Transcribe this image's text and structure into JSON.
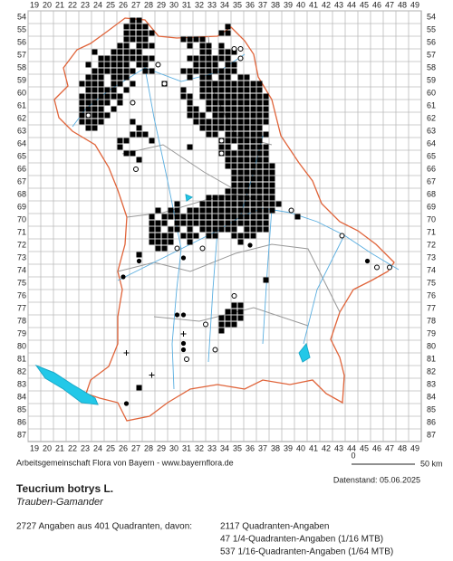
{
  "map": {
    "columns": [
      19,
      20,
      21,
      22,
      23,
      24,
      25,
      26,
      27,
      28,
      29,
      30,
      31,
      32,
      33,
      34,
      35,
      36,
      37,
      38,
      39,
      40,
      41,
      42,
      43,
      44,
      45,
      46,
      47,
      48,
      49
    ],
    "rows": [
      54,
      55,
      56,
      57,
      58,
      59,
      60,
      61,
      62,
      63,
      64,
      65,
      66,
      67,
      68,
      69,
      70,
      71,
      72,
      73,
      74,
      75,
      76,
      77,
      78,
      79,
      80,
      81,
      82,
      83,
      84,
      85,
      86,
      87
    ],
    "squares": [
      {
        "y": 54.25,
        "x": [
          26.75,
          27.25
        ]
      },
      {
        "y": 54.75,
        "x": [
          26.25,
          26.75,
          27.25,
          27.75,
          34.25
        ]
      },
      {
        "y": 55.25,
        "x": [
          26.25,
          26.75,
          27.25,
          27.75,
          28.25,
          33.75,
          34.25
        ]
      },
      {
        "y": 55.75,
        "x": [
          26.25,
          26.75,
          27.25,
          27.75,
          30.75,
          31.25,
          31.75,
          32.25
        ]
      },
      {
        "y": 56.25,
        "x": [
          25.75,
          26.25,
          27.25,
          27.75,
          28.25,
          31.25,
          32.25,
          32.75,
          33.75
        ]
      },
      {
        "y": 56.75,
        "x": [
          23.75,
          25.25,
          25.75,
          26.25,
          26.75,
          27.25,
          32.25,
          32.75,
          33.75,
          34.25,
          34.75
        ]
      },
      {
        "y": 57.25,
        "x": [
          24.25,
          24.75,
          25.25,
          25.75,
          26.25,
          26.75,
          27.25,
          27.75,
          28.25,
          31.25,
          31.75,
          32.25,
          32.75,
          33.25,
          33.75,
          34.25
        ]
      },
      {
        "y": 57.75,
        "x": [
          23.25,
          24.25,
          24.75,
          25.25,
          25.75,
          26.25,
          27.25,
          27.75,
          31.75,
          32.25,
          32.75,
          33.25,
          34.25,
          34.75
        ]
      },
      {
        "y": 58.25,
        "x": [
          23.75,
          24.25,
          24.75,
          25.25,
          25.75,
          26.25,
          26.75,
          27.75,
          28.25,
          30.75,
          31.25,
          31.75,
          32.25,
          32.75,
          33.25,
          33.75,
          34.25,
          34.75
        ]
      },
      {
        "y": 58.75,
        "x": [
          23.25,
          23.75,
          24.25,
          25.25,
          25.75,
          26.25,
          31.25,
          32.25,
          32.75,
          33.75,
          34.25,
          35.25,
          35.75
        ]
      },
      {
        "y": 59.25,
        "x": [
          22.75,
          23.25,
          23.75,
          24.25,
          25.25,
          25.75,
          26.75,
          29.25,
          32.25,
          32.75,
          33.25,
          33.75,
          34.25,
          34.75,
          35.25,
          35.75,
          36.25,
          36.75
        ]
      },
      {
        "y": 59.75,
        "x": [
          23.25,
          23.75,
          24.25,
          24.75,
          25.25,
          26.25,
          30.75,
          32.25,
          32.75,
          33.25,
          33.75,
          34.25,
          34.75,
          35.25,
          35.75,
          36.25,
          36.75
        ]
      },
      {
        "y": 60.25,
        "x": [
          22.75,
          23.25,
          23.75,
          24.25,
          24.75,
          25.25,
          25.75,
          30.75,
          31.25,
          32.25,
          32.75,
          33.25,
          33.75,
          34.25,
          34.75,
          35.25,
          35.75,
          36.25,
          36.75,
          37.25
        ]
      },
      {
        "y": 60.75,
        "x": [
          22.75,
          23.25,
          23.75,
          24.25,
          24.75,
          25.75,
          31.25,
          32.75,
          33.25,
          33.75,
          34.25,
          34.75,
          35.25,
          35.75,
          36.25,
          36.75,
          37.25
        ]
      },
      {
        "y": 61.25,
        "x": [
          22.75,
          23.25,
          23.75,
          24.25,
          25.25,
          31.25,
          31.75,
          32.75,
          33.25,
          33.75,
          34.25,
          34.75,
          35.25,
          35.75,
          36.25,
          36.75,
          37.25
        ]
      },
      {
        "y": 61.75,
        "x": [
          22.75,
          23.25,
          23.75,
          24.25,
          24.75,
          31.25,
          31.75,
          32.25,
          33.25,
          33.75,
          34.25,
          34.75,
          35.25,
          35.75,
          36.25,
          36.75,
          37.25
        ]
      },
      {
        "y": 62.25,
        "x": [
          22.75,
          23.25,
          23.75,
          24.25,
          26.75,
          31.75,
          32.25,
          32.75,
          33.25,
          33.75,
          34.25,
          34.75,
          35.25,
          35.75,
          36.25,
          36.75,
          37.25
        ]
      },
      {
        "y": 62.75,
        "x": [
          23.25,
          23.75,
          27.25,
          32.25,
          32.75,
          33.25,
          33.75,
          34.25,
          34.75,
          35.25,
          35.75,
          36.25,
          36.75
        ]
      },
      {
        "y": 63.25,
        "x": [
          26.75,
          27.25,
          27.75,
          32.75,
          33.25,
          34.25,
          34.75,
          35.25,
          35.75,
          36.25,
          36.75,
          37.25
        ]
      },
      {
        "y": 63.75,
        "x": [
          25.75,
          26.25,
          28.25,
          33.75,
          34.25,
          34.75,
          35.25,
          35.75,
          36.25,
          36.75
        ]
      },
      {
        "y": 64.25,
        "x": [
          25.75,
          31.25,
          33.75,
          34.25,
          35.25,
          35.75,
          36.25,
          36.75,
          37.25
        ]
      },
      {
        "y": 64.75,
        "x": [
          26.25,
          26.75,
          33.75,
          34.25,
          34.75,
          35.25,
          35.75,
          36.25,
          36.75,
          37.25
        ]
      },
      {
        "y": 65.25,
        "x": [
          27.25,
          34.25,
          34.75,
          35.25,
          35.75,
          36.25,
          36.75,
          37.25
        ]
      },
      {
        "y": 65.75,
        "x": [
          34.25,
          34.75,
          35.25,
          35.75,
          36.25,
          36.75,
          37.25,
          37.75
        ]
      },
      {
        "y": 66.25,
        "x": [
          34.75,
          35.25,
          35.75,
          36.25,
          36.75,
          37.25,
          37.75
        ]
      },
      {
        "y": 66.75,
        "x": [
          34.75,
          35.25,
          35.75,
          36.25,
          36.75,
          37.25,
          37.75
        ]
      },
      {
        "y": 67.25,
        "x": [
          34.75,
          35.25,
          35.75,
          36.25,
          36.75,
          37.25,
          37.75
        ]
      },
      {
        "y": 67.75,
        "x": [
          34.25,
          34.75,
          35.25,
          35.75,
          36.25,
          36.75,
          37.25,
          37.75
        ]
      },
      {
        "y": 68.25,
        "x": [
          32.75,
          33.25,
          33.75,
          34.25,
          34.75,
          35.25,
          35.75,
          36.25,
          36.75,
          37.25,
          37.75
        ]
      },
      {
        "y": 68.75,
        "x": [
          30.25,
          32.25,
          32.75,
          33.25,
          33.75,
          34.25,
          34.75,
          35.25,
          35.75,
          36.25,
          36.75,
          37.25,
          37.75,
          38.25
        ]
      },
      {
        "y": 69.25,
        "x": [
          28.75,
          29.75,
          30.25,
          31.25,
          31.75,
          32.25,
          32.75,
          33.25,
          33.75,
          34.25,
          34.75,
          35.25,
          35.75,
          36.25,
          36.75,
          37.25,
          37.75
        ]
      },
      {
        "y": 69.75,
        "x": [
          28.25,
          29.25,
          29.75,
          30.25,
          30.75,
          31.25,
          31.75,
          32.25,
          32.75,
          33.25,
          33.75,
          34.25,
          34.75,
          35.25,
          35.75,
          36.25,
          36.75,
          37.25,
          39.75
        ]
      },
      {
        "y": 70.25,
        "x": [
          28.25,
          28.75,
          29.25,
          30.25,
          30.75,
          31.25,
          31.75,
          32.25,
          32.75,
          33.25,
          33.75,
          34.25,
          34.75,
          35.25,
          35.75,
          36.25,
          36.75,
          37.25
        ]
      },
      {
        "y": 70.75,
        "x": [
          28.25,
          28.75,
          29.75,
          30.25,
          31.25,
          32.25,
          32.75,
          33.25,
          33.75,
          34.25,
          34.75,
          35.75,
          36.25,
          36.75,
          37.25
        ]
      },
      {
        "y": 71.25,
        "x": [
          28.25,
          28.75,
          29.25,
          29.75,
          30.75,
          31.25,
          31.75,
          32.75,
          33.25,
          34.75,
          35.25,
          35.75,
          36.25
        ]
      },
      {
        "y": 71.75,
        "x": [
          28.25,
          28.75,
          29.25,
          29.75,
          31.25,
          35.25
        ]
      },
      {
        "y": 72.25,
        "x": [
          28.75,
          29.25
        ]
      },
      {
        "y": 72.75,
        "x": [
          27.25
        ]
      },
      {
        "y": 74.75,
        "x": [
          37.25
        ]
      },
      {
        "y": 76.75,
        "x": [
          34.75,
          35.25
        ]
      },
      {
        "y": 77.25,
        "x": [
          34.25,
          34.75,
          35.25
        ]
      },
      {
        "y": 77.75,
        "x": [
          33.75,
          34.25,
          34.75,
          35.25
        ]
      },
      {
        "y": 78.25,
        "x": [
          33.75,
          34.25,
          34.75
        ]
      },
      {
        "y": 78.75,
        "x": [
          33.75
        ]
      },
      {
        "y": 83.25,
        "x": [
          27.25
        ]
      }
    ],
    "dots": [
      [
        26.75,
        64.75
      ],
      [
        27.25,
        65.25
      ],
      [
        45.25,
        73.25
      ],
      [
        26.0,
        74.5
      ],
      [
        30.75,
        77.5
      ],
      [
        30.25,
        77.5
      ],
      [
        30.75,
        79.75
      ],
      [
        30.75,
        80.25
      ],
      [
        27.25,
        72.75
      ],
      [
        27.25,
        73.25
      ],
      [
        26.25,
        84.5
      ],
      [
        30.75,
        73.0
      ],
      [
        36.0,
        72.0
      ]
    ],
    "circles": [
      [
        28.75,
        57.75
      ],
      [
        29.25,
        59.25
      ],
      [
        34.75,
        56.5
      ],
      [
        35.25,
        56.5
      ],
      [
        35.25,
        57.25
      ],
      [
        33.75,
        64.75
      ],
      [
        33.75,
        63.75
      ],
      [
        27.0,
        66.0
      ],
      [
        39.25,
        69.25
      ],
      [
        43.25,
        71.25
      ],
      [
        46.0,
        73.75
      ],
      [
        47.0,
        73.75
      ],
      [
        34.75,
        76.0
      ],
      [
        32.5,
        78.25
      ],
      [
        33.25,
        80.25
      ],
      [
        31.0,
        81.0
      ],
      [
        30.25,
        72.25
      ],
      [
        32.25,
        72.25
      ],
      [
        23.25,
        61.75
      ],
      [
        26.75,
        60.75
      ]
    ],
    "crosses": [
      [
        26.25,
        80.5
      ],
      [
        28.25,
        82.25
      ],
      [
        30.75,
        79.0
      ]
    ]
  },
  "footer": {
    "credit": "Arbeitsgemeinschaft Flora von Bayern - www.bayernflora.de",
    "scale_start": "0",
    "scale_end": "50 km",
    "date": "Datenstand: 05.06.2025",
    "species": "Teucrium botrys L.",
    "common_name": "Trauben-Gamander",
    "summary": "2727 Angaben aus 401 Quadranten, davon:",
    "stats": [
      "2117 Quadranten-Angaben",
      "47 1/4-Quadranten-Angaben (1/16 MTB)",
      "537 1/16-Quadranten-Angaben (1/64 MTB)"
    ]
  }
}
